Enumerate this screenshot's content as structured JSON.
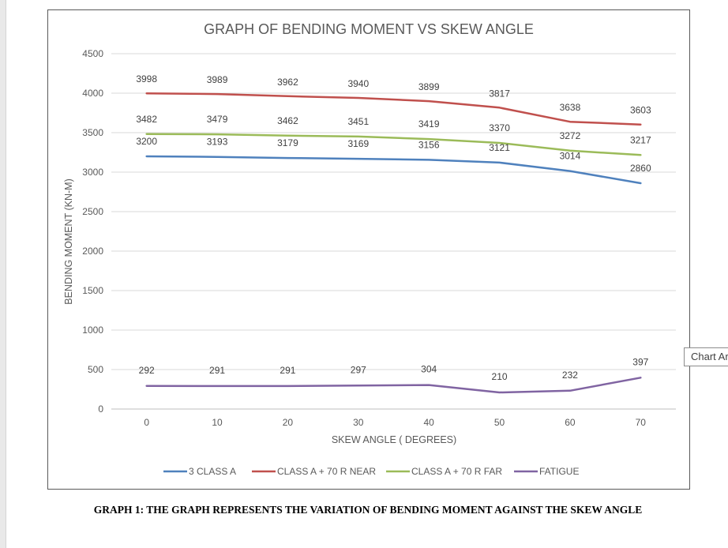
{
  "chart_data": {
    "type": "line",
    "title": "GRAPH OF BENDING MOMENT VS SKEW ANGLE",
    "xlabel": "SKEW ANGLE ( DEGREES)",
    "ylabel": "BENDING MOMENT (KN-M)",
    "x": [
      0,
      10,
      20,
      30,
      40,
      50,
      60,
      70
    ],
    "ylim": [
      0,
      4500
    ],
    "yticks": [
      0,
      500,
      1000,
      1500,
      2000,
      2500,
      3000,
      3500,
      4000,
      4500
    ],
    "grid": true,
    "legend_position": "bottom",
    "series": [
      {
        "name": "3 CLASS A",
        "color": "#4f81bd",
        "values": [
          3200,
          3193,
          3179,
          3169,
          3156,
          3121,
          3014,
          2860
        ]
      },
      {
        "name": "CLASS A + 70 R NEAR",
        "color": "#c0504d",
        "values": [
          3998,
          3989,
          3962,
          3940,
          3899,
          3817,
          3638,
          3603
        ]
      },
      {
        "name": "CLASS A + 70 R  FAR",
        "color": "#9bbb59",
        "values": [
          3482,
          3479,
          3462,
          3451,
          3419,
          3370,
          3272,
          3217
        ]
      },
      {
        "name": "FATIGUE",
        "color": "#8064a2",
        "values": [
          292,
          291,
          291,
          297,
          304,
          210,
          232,
          397
        ]
      }
    ]
  },
  "tooltip": {
    "text": "Chart Ar"
  },
  "caption": {
    "text": "GRAPH 1: THE GRAPH REPRESENTS THE VARIATION OF BENDING MOMENT AGAINST THE SKEW ANGLE"
  }
}
